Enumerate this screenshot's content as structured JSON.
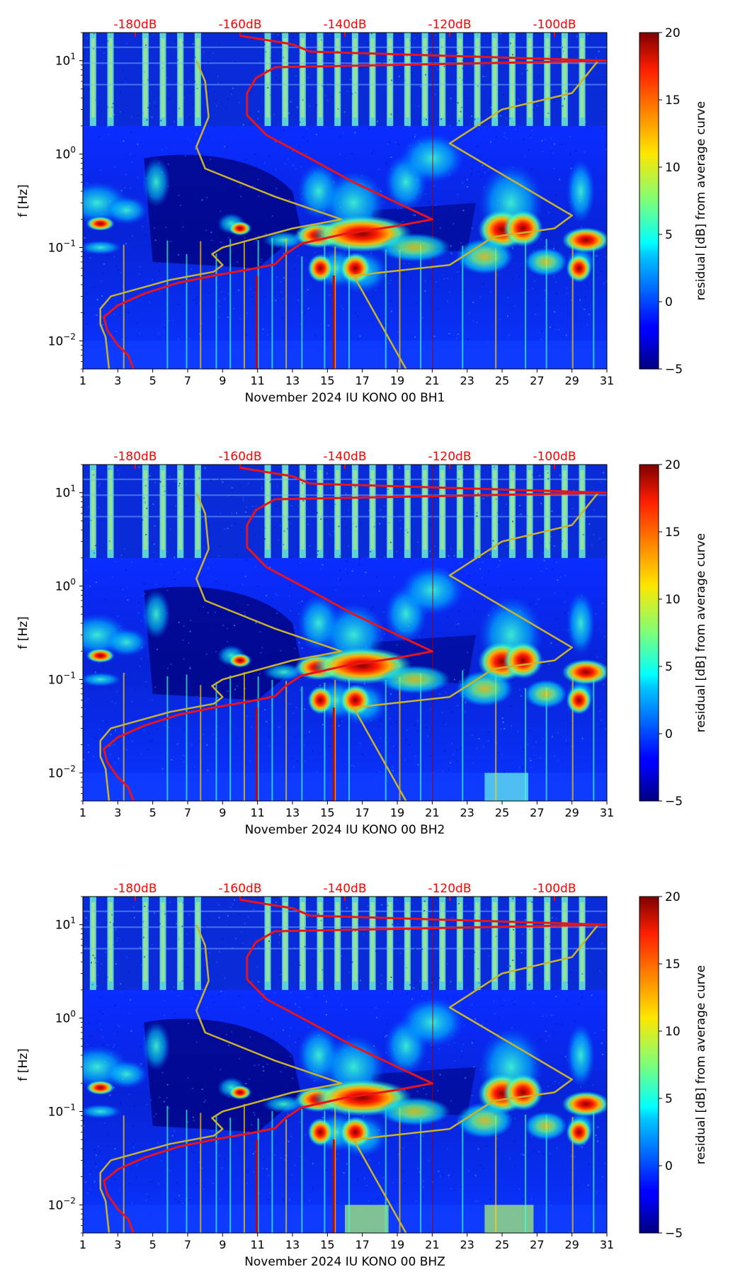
{
  "colors": {
    "pdf_line": "#e8141a",
    "model_line": "#c8b32a",
    "top_label": "#ff0000",
    "background_field": "#0a2cff",
    "dark_field": "#00007a"
  },
  "colorbar": {
    "label": "residual [dB] from average curve",
    "ticks": [
      "20",
      "15",
      "10",
      "5",
      "0",
      "−5"
    ],
    "tick_values": [
      20,
      15,
      10,
      5,
      0,
      -5
    ],
    "range": [
      -5,
      20
    ],
    "colormap": "jet"
  },
  "chart_data": [
    {
      "type": "heatmap",
      "xlabel": "November 2024 IU KONO 00 BH1",
      "ylabel": "f [Hz]",
      "x_ticks": [
        "1",
        "3",
        "5",
        "7",
        "9",
        "11",
        "13",
        "15",
        "17",
        "19",
        "21",
        "23",
        "25",
        "27",
        "29",
        "31"
      ],
      "x_range": [
        1,
        31
      ],
      "y_ticks": [
        {
          "base": "10",
          "exp": "1",
          "value": 10
        },
        {
          "base": "10",
          "exp": "0",
          "value": 1
        },
        {
          "base": "10",
          "exp": "−1",
          "value": 0.1
        },
        {
          "base": "10",
          "exp": "−2",
          "value": 0.01
        }
      ],
      "y_range": [
        0.005,
        20
      ],
      "top_labels": [
        "-180dB",
        "-160dB",
        "-140dB",
        "-120dB",
        "-100dB"
      ],
      "top_label_days": [
        4,
        10,
        16,
        22,
        28
      ]
    },
    {
      "type": "heatmap",
      "xlabel": "November 2024 IU KONO 00 BH2",
      "ylabel": "f [Hz]",
      "x_ticks": [
        "1",
        "3",
        "5",
        "7",
        "9",
        "11",
        "13",
        "15",
        "17",
        "19",
        "21",
        "23",
        "25",
        "27",
        "29",
        "31"
      ],
      "x_range": [
        1,
        31
      ],
      "y_ticks": [
        {
          "base": "10",
          "exp": "1",
          "value": 10
        },
        {
          "base": "10",
          "exp": "0",
          "value": 1
        },
        {
          "base": "10",
          "exp": "−1",
          "value": 0.1
        },
        {
          "base": "10",
          "exp": "−2",
          "value": 0.01
        }
      ],
      "y_range": [
        0.005,
        20
      ],
      "top_labels": [
        "-180dB",
        "-160dB",
        "-140dB",
        "-120dB",
        "-100dB"
      ],
      "top_label_days": [
        4,
        10,
        16,
        22,
        28
      ]
    },
    {
      "type": "heatmap",
      "xlabel": "November 2024 IU KONO 00 BHZ",
      "ylabel": "f [Hz]",
      "x_ticks": [
        "1",
        "3",
        "5",
        "7",
        "9",
        "11",
        "13",
        "15",
        "17",
        "19",
        "21",
        "23",
        "25",
        "27",
        "29",
        "31"
      ],
      "x_range": [
        1,
        31
      ],
      "y_ticks": [
        {
          "base": "10",
          "exp": "1",
          "value": 10
        },
        {
          "base": "10",
          "exp": "0",
          "value": 1
        },
        {
          "base": "10",
          "exp": "−1",
          "value": 0.1
        },
        {
          "base": "10",
          "exp": "−2",
          "value": 0.01
        }
      ],
      "y_range": [
        0.005,
        20
      ],
      "top_labels": [
        "-180dB",
        "-160dB",
        "-140dB",
        "-120dB",
        "-100dB"
      ],
      "top_label_days": [
        4,
        10,
        16,
        22,
        28
      ]
    }
  ],
  "pdf_curve_days_vs_freq": [
    [
      3.9,
      0.005
    ],
    [
      3.6,
      0.007
    ],
    [
      3.0,
      0.009
    ],
    [
      2.4,
      0.013
    ],
    [
      2.2,
      0.018
    ],
    [
      3.0,
      0.024
    ],
    [
      4.5,
      0.032
    ],
    [
      6.5,
      0.042
    ],
    [
      8.5,
      0.05
    ],
    [
      10.5,
      0.058
    ],
    [
      12.0,
      0.066
    ],
    [
      12.6,
      0.085
    ],
    [
      13.5,
      0.11
    ],
    [
      16.0,
      0.14
    ],
    [
      19.0,
      0.17
    ],
    [
      21.0,
      0.2
    ],
    [
      19.0,
      0.3
    ],
    [
      16.5,
      0.5
    ],
    [
      14.0,
      0.9
    ],
    [
      11.5,
      1.6
    ],
    [
      10.4,
      2.6
    ],
    [
      10.4,
      4.5
    ],
    [
      10.9,
      6.5
    ],
    [
      12.0,
      8.5
    ],
    [
      31.0,
      10.0
    ],
    [
      14.0,
      12.5
    ],
    [
      13.0,
      15.0
    ],
    [
      10.0,
      18.5
    ]
  ],
  "model_curve_days_vs_freq": [
    [
      2.5,
      0.005
    ],
    [
      2.3,
      0.011
    ],
    [
      2.0,
      0.015
    ],
    [
      2.0,
      0.022
    ],
    [
      2.6,
      0.03
    ],
    [
      6.0,
      0.045
    ],
    [
      8.5,
      0.055
    ],
    [
      9.0,
      0.065
    ],
    [
      8.4,
      0.085
    ],
    [
      9.0,
      0.1
    ],
    [
      13.0,
      0.16
    ],
    [
      15.8,
      0.2
    ],
    [
      12.0,
      0.35
    ],
    [
      8.0,
      0.7
    ],
    [
      7.5,
      1.2
    ],
    [
      8.2,
      2.5
    ],
    [
      8.0,
      6.0
    ],
    [
      7.5,
      10.0
    ]
  ],
  "model_curve_high_days_vs_freq": [
    [
      19.5,
      0.005
    ],
    [
      16.5,
      0.05
    ],
    [
      22.0,
      0.065
    ],
    [
      24.5,
      0.13
    ],
    [
      28.0,
      0.16
    ],
    [
      29.0,
      0.22
    ],
    [
      22.0,
      1.3
    ],
    [
      25.0,
      3.0
    ],
    [
      29.0,
      4.5
    ],
    [
      30.5,
      10.0
    ]
  ]
}
